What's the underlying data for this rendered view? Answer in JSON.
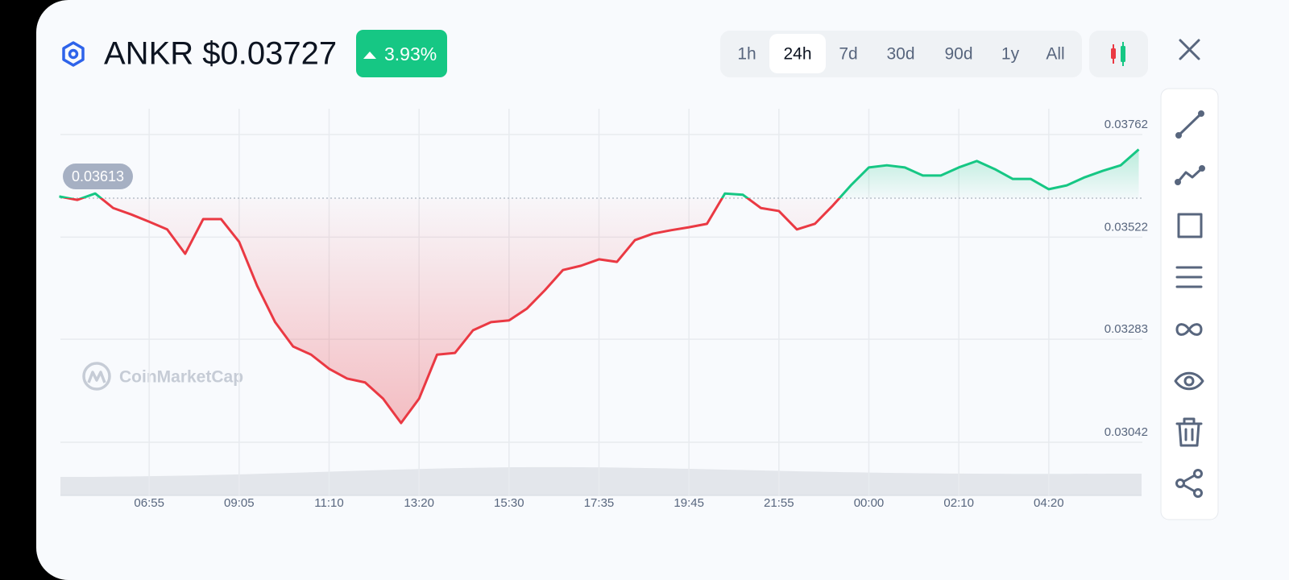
{
  "header": {
    "title": "ANKR $0.03727",
    "change": "3.93%"
  },
  "timeframes": {
    "options": [
      "1h",
      "24h",
      "7d",
      "30d",
      "90d",
      "1y",
      "All"
    ],
    "selected": 1
  },
  "watermark": "CoinMarketCap",
  "chart_data": {
    "type": "line",
    "categories": [
      null,
      null,
      null,
      null,
      null,
      "06:55",
      null,
      null,
      null,
      null,
      "09:05",
      null,
      null,
      null,
      null,
      "11:10",
      null,
      null,
      null,
      null,
      "13:20",
      null,
      null,
      null,
      null,
      "15:30",
      null,
      null,
      null,
      null,
      "17:35",
      null,
      null,
      null,
      null,
      "19:45",
      null,
      null,
      null,
      null,
      "21:55",
      null,
      null,
      null,
      null,
      "00:00",
      null,
      null,
      null,
      null,
      "02:10",
      null,
      null,
      null,
      null,
      "04:20",
      null,
      null,
      null,
      null,
      null
    ],
    "values": [
      0.03617,
      0.03609,
      0.03624,
      0.0359,
      0.03575,
      0.03558,
      0.0354,
      0.03483,
      0.03564,
      0.03564,
      0.03511,
      0.03408,
      0.03323,
      0.03266,
      0.03247,
      0.03214,
      0.03191,
      0.03182,
      0.03144,
      0.03087,
      0.03144,
      0.03247,
      0.03251,
      0.03304,
      0.03323,
      0.03327,
      0.03355,
      0.03398,
      0.03445,
      0.03455,
      0.0347,
      0.03464,
      0.03515,
      0.0353,
      0.03538,
      0.03545,
      0.03553,
      0.03624,
      0.03621,
      0.0359,
      0.03583,
      0.0354,
      0.03553,
      0.03596,
      0.03643,
      0.03685,
      0.0369,
      0.03685,
      0.03666,
      0.03666,
      0.03685,
      0.037,
      0.03681,
      0.03658,
      0.03658,
      0.03634,
      0.03643,
      0.03662,
      0.03677,
      0.0369,
      0.03727
    ],
    "baseline": 0.03613,
    "up_color": "#16c784",
    "down_color": "#ea3943",
    "ylim": [
      0.0302,
      0.0381
    ],
    "yticks": [
      0.03042,
      0.03283,
      0.03522,
      0.03762
    ],
    "grid": true
  }
}
